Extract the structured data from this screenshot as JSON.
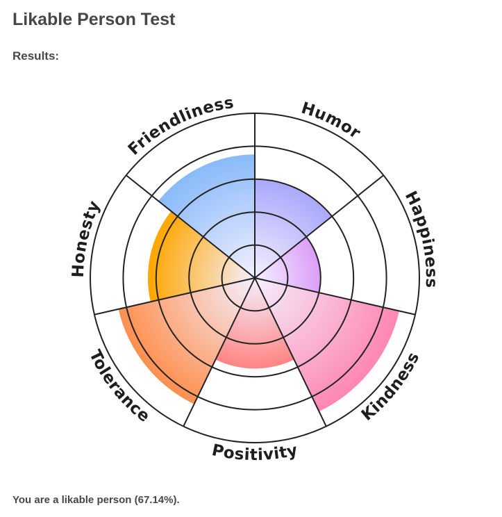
{
  "title": "Likable Person Test",
  "results_label": "Results:",
  "summary": "You are a likable person (67.14%).",
  "chart_data": {
    "type": "polar-area",
    "title": "",
    "rmax": 100,
    "rings": [
      20,
      40,
      60,
      80,
      100
    ],
    "grid": true,
    "categories": [
      "Humor",
      "Happiness",
      "Kindness",
      "Positivity",
      "Tolerance",
      "Honesty",
      "Friendliness"
    ],
    "values": [
      60,
      40,
      90,
      55,
      85,
      65,
      75
    ],
    "colors": [
      "#a9a8fb",
      "#dc9ef8",
      "#ff86b3",
      "#ff8584",
      "#ff8f4f",
      "#ffa600",
      "#88bafa"
    ],
    "center_color": "#f4f0ff"
  }
}
